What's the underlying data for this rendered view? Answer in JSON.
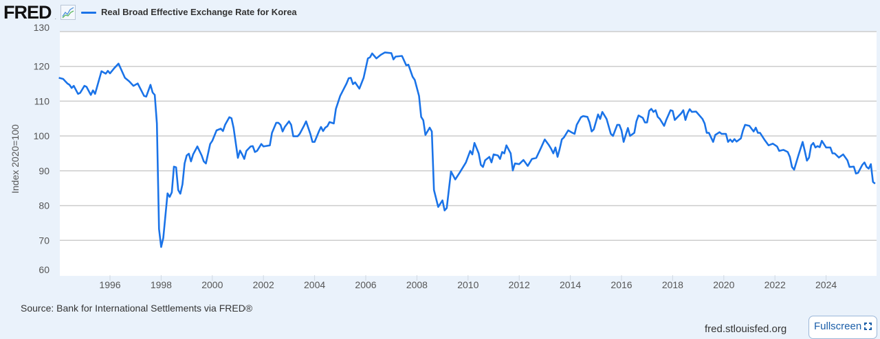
{
  "header": {
    "logo": "FRED",
    "series_title": "Real Broad Effective Exchange Rate for Korea",
    "icons": [
      "fred-logo",
      "line-chart-icon"
    ]
  },
  "footer": {
    "source": "Source: Bank for International Settlements via FRED®",
    "site": "fred.stlouisfed.org",
    "fullscreen_label": "Fullscreen",
    "fullscreen_icon": "expand-icon"
  },
  "colors": {
    "line": "#1a73e8",
    "background": "#eaf2fb",
    "plot": "#ffffff",
    "grid": "#cccccc"
  },
  "chart_data": {
    "type": "line",
    "title": "",
    "xlabel": "",
    "ylabel": "Index 2020=100",
    "ylim": [
      60,
      130
    ],
    "xlim": [
      "1994-01",
      "2025-12"
    ],
    "yticks": [
      "60",
      "70",
      "80",
      "90",
      "100",
      "110",
      "120",
      "130"
    ],
    "xticks": [
      "1996",
      "1998",
      "2000",
      "2002",
      "2004",
      "2006",
      "2008",
      "2010",
      "2012",
      "2014",
      "2016",
      "2018",
      "2020",
      "2022",
      "2024"
    ],
    "grid": "horizontal",
    "legend": "top-left",
    "series": [
      {
        "name": "Real Broad Effective Exchange Rate for Korea",
        "color": "#1a73e8",
        "points": [
          [
            "1994-01",
            116.7
          ],
          [
            "1994-03",
            116.4
          ],
          [
            "1994-05",
            115.1
          ],
          [
            "1994-06",
            114.7
          ],
          [
            "1994-07",
            113.8
          ],
          [
            "1994-08",
            114.4
          ],
          [
            "1994-10",
            112.1
          ],
          [
            "1994-11",
            112.4
          ],
          [
            "1995-01",
            114.4
          ],
          [
            "1995-02",
            114.1
          ],
          [
            "1995-04",
            111.8
          ],
          [
            "1995-05",
            113.1
          ],
          [
            "1995-06",
            112.1
          ],
          [
            "1995-09",
            118.6
          ],
          [
            "1995-11",
            117.9
          ],
          [
            "1995-12",
            118.7
          ],
          [
            "1996-01",
            118.0
          ],
          [
            "1996-03",
            119.5
          ],
          [
            "1996-05",
            120.8
          ],
          [
            "1996-08",
            116.7
          ],
          [
            "1996-10",
            115.7
          ],
          [
            "1996-12",
            114.4
          ],
          [
            "1997-02",
            115.1
          ],
          [
            "1997-05",
            111.5
          ],
          [
            "1997-06",
            111.3
          ],
          [
            "1997-08",
            114.7
          ],
          [
            "1997-09",
            112.5
          ],
          [
            "1997-10",
            111.8
          ],
          [
            "1997-11",
            103.6
          ],
          [
            "1997-12",
            73.3
          ],
          [
            "1998-01",
            68.1
          ],
          [
            "1998-02",
            70.7
          ],
          [
            "1998-04",
            83.5
          ],
          [
            "1998-05",
            82.5
          ],
          [
            "1998-06",
            83.8
          ],
          [
            "1998-07",
            91.2
          ],
          [
            "1998-08",
            91.0
          ],
          [
            "1998-09",
            84.5
          ],
          [
            "1998-10",
            83.4
          ],
          [
            "1998-11",
            86.1
          ],
          [
            "1998-12",
            92.1
          ],
          [
            "1999-01",
            94.4
          ],
          [
            "1999-02",
            94.9
          ],
          [
            "1999-03",
            92.7
          ],
          [
            "1999-04",
            94.7
          ],
          [
            "1999-06",
            97.0
          ],
          [
            "1999-08",
            94.4
          ],
          [
            "1999-09",
            92.7
          ],
          [
            "1999-10",
            92.1
          ],
          [
            "1999-12",
            97.7
          ],
          [
            "2000-01",
            98.6
          ],
          [
            "2000-03",
            101.6
          ],
          [
            "2000-05",
            102.1
          ],
          [
            "2000-06",
            101.4
          ],
          [
            "2000-07",
            103.2
          ],
          [
            "2000-09",
            105.4
          ],
          [
            "2000-10",
            105.1
          ],
          [
            "2000-11",
            102.3
          ],
          [
            "2001-01",
            93.7
          ],
          [
            "2001-02",
            95.8
          ],
          [
            "2001-03",
            94.7
          ],
          [
            "2001-04",
            93.4
          ],
          [
            "2001-05",
            95.7
          ],
          [
            "2001-07",
            97.0
          ],
          [
            "2001-08",
            97.1
          ],
          [
            "2001-09",
            95.4
          ],
          [
            "2001-10",
            95.7
          ],
          [
            "2001-12",
            97.7
          ],
          [
            "2002-01",
            97.0
          ],
          [
            "2002-02",
            97.1
          ],
          [
            "2002-04",
            97.3
          ],
          [
            "2002-05",
            100.9
          ],
          [
            "2002-07",
            103.8
          ],
          [
            "2002-08",
            103.8
          ],
          [
            "2002-09",
            103.2
          ],
          [
            "2002-10",
            101.3
          ],
          [
            "2002-11",
            102.6
          ],
          [
            "2003-01",
            104.2
          ],
          [
            "2003-02",
            103.2
          ],
          [
            "2003-03",
            99.9
          ],
          [
            "2003-05",
            99.9
          ],
          [
            "2003-06",
            100.6
          ],
          [
            "2003-08",
            102.9
          ],
          [
            "2003-09",
            104.2
          ],
          [
            "2003-11",
            100.6
          ],
          [
            "2003-12",
            98.3
          ],
          [
            "2004-01",
            98.3
          ],
          [
            "2004-03",
            101.3
          ],
          [
            "2004-04",
            102.6
          ],
          [
            "2004-05",
            101.4
          ],
          [
            "2004-06",
            102.4
          ],
          [
            "2004-07",
            102.8
          ],
          [
            "2004-08",
            104.0
          ],
          [
            "2004-10",
            103.6
          ],
          [
            "2004-11",
            107.8
          ],
          [
            "2005-01",
            111.5
          ],
          [
            "2005-04",
            115.1
          ],
          [
            "2005-05",
            116.6
          ],
          [
            "2005-06",
            116.7
          ],
          [
            "2005-07",
            114.9
          ],
          [
            "2005-08",
            115.4
          ],
          [
            "2005-10",
            113.6
          ],
          [
            "2005-12",
            116.7
          ],
          [
            "2006-02",
            122.3
          ],
          [
            "2006-03",
            122.6
          ],
          [
            "2006-04",
            123.7
          ],
          [
            "2006-06",
            122.3
          ],
          [
            "2006-08",
            123.3
          ],
          [
            "2006-10",
            124.0
          ],
          [
            "2007-01",
            123.8
          ],
          [
            "2007-02",
            122.0
          ],
          [
            "2007-03",
            122.8
          ],
          [
            "2007-06",
            123.0
          ],
          [
            "2007-08",
            120.3
          ],
          [
            "2007-09",
            120.5
          ],
          [
            "2007-11",
            117.0
          ],
          [
            "2007-12",
            116.1
          ],
          [
            "2008-02",
            111.5
          ],
          [
            "2008-03",
            105.5
          ],
          [
            "2008-04",
            104.5
          ],
          [
            "2008-05",
            100.3
          ],
          [
            "2008-07",
            102.4
          ],
          [
            "2008-08",
            101.3
          ],
          [
            "2008-09",
            84.5
          ],
          [
            "2008-11",
            79.6
          ],
          [
            "2009-01",
            81.5
          ],
          [
            "2009-02",
            78.6
          ],
          [
            "2009-03",
            79.3
          ],
          [
            "2009-05",
            89.8
          ],
          [
            "2009-07",
            87.5
          ],
          [
            "2009-09",
            89.4
          ],
          [
            "2009-11",
            91.4
          ],
          [
            "2009-12",
            92.4
          ],
          [
            "2010-02",
            95.7
          ],
          [
            "2010-03",
            94.7
          ],
          [
            "2010-04",
            98.0
          ],
          [
            "2010-06",
            95.0
          ],
          [
            "2010-07",
            91.7
          ],
          [
            "2010-08",
            91.1
          ],
          [
            "2010-09",
            93.0
          ],
          [
            "2010-11",
            94.0
          ],
          [
            "2010-12",
            92.4
          ],
          [
            "2011-01",
            94.7
          ],
          [
            "2011-03",
            94.4
          ],
          [
            "2011-04",
            93.4
          ],
          [
            "2011-05",
            95.4
          ],
          [
            "2011-06",
            95.0
          ],
          [
            "2011-07",
            97.3
          ],
          [
            "2011-09",
            95.0
          ],
          [
            "2011-10",
            90.1
          ],
          [
            "2011-11",
            92.1
          ],
          [
            "2012-01",
            91.9
          ],
          [
            "2012-03",
            93.1
          ],
          [
            "2012-05",
            91.4
          ],
          [
            "2012-07",
            93.4
          ],
          [
            "2012-09",
            93.7
          ],
          [
            "2012-11",
            96.3
          ],
          [
            "2013-01",
            99.0
          ],
          [
            "2013-03",
            97.3
          ],
          [
            "2013-04",
            96.3
          ],
          [
            "2013-05",
            95.0
          ],
          [
            "2013-06",
            96.7
          ],
          [
            "2013-07",
            94.0
          ],
          [
            "2013-08",
            96.3
          ],
          [
            "2013-09",
            99.0
          ],
          [
            "2013-10",
            99.6
          ],
          [
            "2013-12",
            101.6
          ],
          [
            "2014-02",
            100.9
          ],
          [
            "2014-03",
            100.6
          ],
          [
            "2014-04",
            103.2
          ],
          [
            "2014-06",
            105.4
          ],
          [
            "2014-07",
            105.7
          ],
          [
            "2014-09",
            105.5
          ],
          [
            "2014-10",
            103.9
          ],
          [
            "2014-11",
            101.3
          ],
          [
            "2014-12",
            101.9
          ],
          [
            "2015-02",
            106.2
          ],
          [
            "2015-03",
            104.9
          ],
          [
            "2015-04",
            106.9
          ],
          [
            "2015-06",
            104.9
          ],
          [
            "2015-08",
            100.6
          ],
          [
            "2015-09",
            100.0
          ],
          [
            "2015-11",
            103.2
          ],
          [
            "2015-12",
            103.2
          ],
          [
            "2016-01",
            101.6
          ],
          [
            "2016-02",
            98.3
          ],
          [
            "2016-04",
            102.3
          ],
          [
            "2016-05",
            100.0
          ],
          [
            "2016-07",
            100.9
          ],
          [
            "2016-08",
            104.2
          ],
          [
            "2016-09",
            105.9
          ],
          [
            "2016-11",
            105.2
          ],
          [
            "2016-12",
            103.9
          ],
          [
            "2017-01",
            103.9
          ],
          [
            "2017-02",
            107.2
          ],
          [
            "2017-03",
            107.8
          ],
          [
            "2017-04",
            106.9
          ],
          [
            "2017-05",
            107.4
          ],
          [
            "2017-06",
            105.5
          ],
          [
            "2017-07",
            104.9
          ],
          [
            "2017-09",
            102.9
          ],
          [
            "2017-10",
            104.6
          ],
          [
            "2017-12",
            107.4
          ],
          [
            "2018-01",
            107.2
          ],
          [
            "2018-02",
            104.6
          ],
          [
            "2018-05",
            106.5
          ],
          [
            "2018-06",
            107.4
          ],
          [
            "2018-07",
            104.6
          ],
          [
            "2018-08",
            106.5
          ],
          [
            "2018-09",
            107.7
          ],
          [
            "2018-10",
            106.9
          ],
          [
            "2018-12",
            107.0
          ],
          [
            "2019-03",
            104.9
          ],
          [
            "2019-04",
            103.6
          ],
          [
            "2019-05",
            100.9
          ],
          [
            "2019-06",
            100.9
          ],
          [
            "2019-08",
            98.3
          ],
          [
            "2019-09",
            100.3
          ],
          [
            "2019-11",
            101.1
          ],
          [
            "2019-12",
            100.6
          ],
          [
            "2020-02",
            100.6
          ],
          [
            "2020-03",
            98.3
          ],
          [
            "2020-04",
            99.0
          ],
          [
            "2020-05",
            98.3
          ],
          [
            "2020-06",
            99.1
          ],
          [
            "2020-07",
            98.4
          ],
          [
            "2020-09",
            99.3
          ],
          [
            "2020-10",
            101.6
          ],
          [
            "2020-11",
            103.2
          ],
          [
            "2021-01",
            102.9
          ],
          [
            "2021-03",
            101.3
          ],
          [
            "2021-04",
            102.4
          ],
          [
            "2021-05",
            100.9
          ],
          [
            "2021-06",
            100.9
          ],
          [
            "2021-08",
            99.0
          ],
          [
            "2021-10",
            97.3
          ],
          [
            "2021-12",
            97.8
          ],
          [
            "2022-02",
            97.0
          ],
          [
            "2022-03",
            95.7
          ],
          [
            "2022-05",
            96.0
          ],
          [
            "2022-07",
            95.4
          ],
          [
            "2022-08",
            94.0
          ],
          [
            "2022-09",
            91.1
          ],
          [
            "2022-10",
            90.3
          ],
          [
            "2022-12",
            94.4
          ],
          [
            "2023-02",
            98.3
          ],
          [
            "2023-03",
            95.7
          ],
          [
            "2023-04",
            92.9
          ],
          [
            "2023-05",
            93.8
          ],
          [
            "2023-06",
            97.3
          ],
          [
            "2023-07",
            98.0
          ],
          [
            "2023-08",
            96.7
          ],
          [
            "2023-09",
            97.1
          ],
          [
            "2023-10",
            96.8
          ],
          [
            "2023-11",
            98.6
          ],
          [
            "2024-01",
            96.7
          ],
          [
            "2024-03",
            96.7
          ],
          [
            "2024-04",
            95.0
          ],
          [
            "2024-05",
            95.0
          ],
          [
            "2024-07",
            93.8
          ],
          [
            "2024-09",
            94.7
          ],
          [
            "2024-11",
            93.0
          ],
          [
            "2024-12",
            91.1
          ],
          [
            "2025-02",
            91.2
          ],
          [
            "2025-03",
            89.2
          ],
          [
            "2025-04",
            89.4
          ],
          [
            "2025-06",
            91.7
          ],
          [
            "2025-07",
            92.4
          ],
          [
            "2025-08",
            91.1
          ],
          [
            "2025-09",
            90.6
          ],
          [
            "2025-10",
            91.9
          ],
          [
            "2025-11",
            86.8
          ],
          [
            "2025-12",
            86.3
          ]
        ]
      }
    ]
  }
}
